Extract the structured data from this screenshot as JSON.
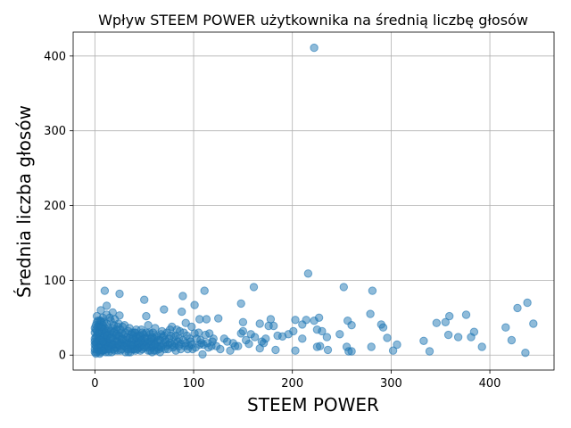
{
  "chart_data": {
    "type": "scatter",
    "title": "Wpływ STEEM POWER użytkownika na średnią liczbę głosów",
    "xlabel": "STEEM POWER",
    "ylabel": "Średnia liczba głosów",
    "xlim": [
      -22,
      465
    ],
    "ylim": [
      -20,
      432
    ],
    "xticks": [
      0,
      100,
      200,
      300,
      400
    ],
    "yticks": [
      0,
      100,
      200,
      300,
      400
    ],
    "grid": true,
    "color": "#1f77b4",
    "points": [
      [
        222,
        411
      ],
      [
        216,
        109
      ],
      [
        252,
        91
      ],
      [
        161,
        91
      ],
      [
        10,
        86
      ],
      [
        111,
        86
      ],
      [
        281,
        86
      ],
      [
        89,
        79
      ],
      [
        50,
        74
      ],
      [
        25,
        82
      ],
      [
        438,
        70
      ],
      [
        148,
        69
      ],
      [
        101,
        67
      ],
      [
        428,
        63
      ],
      [
        70,
        61
      ],
      [
        6,
        60
      ],
      [
        12,
        66
      ],
      [
        18,
        57
      ],
      [
        88,
        58
      ],
      [
        25,
        53
      ],
      [
        8,
        50
      ],
      [
        2,
        52
      ],
      [
        52,
        52
      ],
      [
        113,
        48
      ],
      [
        125,
        49
      ],
      [
        106,
        48
      ],
      [
        178,
        48
      ],
      [
        214,
        47
      ],
      [
        222,
        46
      ],
      [
        203,
        47
      ],
      [
        227,
        50
      ],
      [
        256,
        46
      ],
      [
        279,
        55
      ],
      [
        359,
        52
      ],
      [
        376,
        54
      ],
      [
        346,
        43
      ],
      [
        355,
        44
      ],
      [
        444,
        42
      ],
      [
        416,
        37
      ],
      [
        150,
        44
      ],
      [
        167,
        42
      ],
      [
        176,
        39
      ],
      [
        181,
        39
      ],
      [
        210,
        41
      ],
      [
        201,
        32
      ],
      [
        225,
        34
      ],
      [
        230,
        32
      ],
      [
        210,
        22
      ],
      [
        235,
        24
      ],
      [
        248,
        28
      ],
      [
        260,
        40
      ],
      [
        290,
        41
      ],
      [
        292,
        37
      ],
      [
        296,
        23
      ],
      [
        306,
        14
      ],
      [
        333,
        19
      ],
      [
        358,
        27
      ],
      [
        368,
        24
      ],
      [
        381,
        24
      ],
      [
        384,
        31
      ],
      [
        392,
        11
      ],
      [
        422,
        20
      ],
      [
        436,
        3
      ],
      [
        339,
        5
      ],
      [
        302,
        6
      ],
      [
        280,
        11
      ],
      [
        260,
        5
      ],
      [
        257,
        5
      ],
      [
        255,
        11
      ],
      [
        236,
        7
      ],
      [
        228,
        12
      ],
      [
        225,
        11
      ],
      [
        203,
        6
      ],
      [
        183,
        7
      ],
      [
        171,
        16
      ],
      [
        167,
        9
      ],
      [
        156,
        15
      ],
      [
        148,
        29
      ],
      [
        150,
        32
      ],
      [
        142,
        12
      ],
      [
        137,
        6
      ],
      [
        131,
        22
      ],
      [
        120,
        22
      ],
      [
        118,
        12
      ],
      [
        116,
        29
      ],
      [
        112,
        27
      ],
      [
        109,
        1
      ],
      [
        106,
        14
      ],
      [
        101,
        29
      ],
      [
        98,
        38
      ],
      [
        96,
        22
      ],
      [
        94,
        8
      ],
      [
        92,
        43
      ],
      [
        90,
        30
      ],
      [
        87,
        15
      ],
      [
        85,
        22
      ],
      [
        82,
        6
      ],
      [
        80,
        24
      ],
      [
        76,
        34
      ],
      [
        72,
        12
      ],
      [
        70,
        26
      ],
      [
        66,
        12
      ],
      [
        62,
        6
      ],
      [
        60,
        22
      ],
      [
        58,
        4
      ],
      [
        55,
        18
      ],
      [
        48,
        30
      ],
      [
        45,
        10
      ],
      [
        42,
        34
      ],
      [
        38,
        12
      ],
      [
        36,
        4
      ],
      [
        33,
        24
      ],
      [
        28,
        38
      ],
      [
        26,
        16
      ],
      [
        24,
        42
      ],
      [
        21,
        26
      ],
      [
        19,
        8
      ],
      [
        16,
        46
      ],
      [
        14,
        20
      ],
      [
        13,
        32
      ],
      [
        11,
        4
      ],
      [
        10,
        28
      ],
      [
        9,
        16
      ],
      [
        8,
        40
      ],
      [
        7,
        10
      ],
      [
        6,
        24
      ],
      [
        5,
        34
      ],
      [
        4,
        6
      ],
      [
        3,
        18
      ],
      [
        2,
        44
      ],
      [
        1,
        12
      ],
      [
        1,
        2
      ],
      [
        0,
        30
      ],
      [
        0,
        8
      ],
      [
        0,
        22
      ],
      [
        2,
        26
      ],
      [
        4,
        14
      ],
      [
        5,
        2
      ],
      [
        7,
        32
      ],
      [
        9,
        6
      ],
      [
        11,
        18
      ],
      [
        12,
        10
      ],
      [
        15,
        28
      ],
      [
        17,
        4
      ],
      [
        18,
        36
      ],
      [
        20,
        14
      ],
      [
        22,
        22
      ],
      [
        23,
        6
      ],
      [
        27,
        30
      ],
      [
        29,
        12
      ],
      [
        30,
        20
      ],
      [
        31,
        4
      ],
      [
        34,
        16
      ],
      [
        37,
        28
      ],
      [
        39,
        8
      ],
      [
        40,
        20
      ],
      [
        43,
        14
      ],
      [
        44,
        26
      ],
      [
        46,
        6
      ],
      [
        49,
        16
      ],
      [
        51,
        24
      ],
      [
        53,
        10
      ],
      [
        56,
        28
      ],
      [
        57,
        14
      ],
      [
        59,
        30
      ],
      [
        63,
        18
      ],
      [
        65,
        8
      ],
      [
        68,
        32
      ],
      [
        71,
        20
      ],
      [
        74,
        14
      ],
      [
        77,
        26
      ],
      [
        79,
        10
      ],
      [
        84,
        18
      ],
      [
        86,
        32
      ],
      [
        91,
        12
      ],
      [
        93,
        26
      ],
      [
        97,
        18
      ],
      [
        99,
        8
      ],
      [
        103,
        22
      ],
      [
        105,
        30
      ],
      [
        108,
        16
      ],
      [
        115,
        10
      ],
      [
        119,
        18
      ],
      [
        123,
        12
      ],
      [
        127,
        8
      ],
      [
        134,
        18
      ],
      [
        140,
        16
      ],
      [
        145,
        12
      ],
      [
        153,
        20
      ],
      [
        158,
        28
      ],
      [
        162,
        24
      ],
      [
        169,
        18
      ],
      [
        173,
        22
      ],
      [
        185,
        26
      ],
      [
        190,
        25
      ],
      [
        196,
        28
      ],
      [
        15,
        50
      ],
      [
        3,
        38
      ],
      [
        6,
        46
      ],
      [
        20,
        48
      ],
      [
        12,
        54
      ],
      [
        8,
        36
      ],
      [
        22,
        34
      ],
      [
        30,
        40
      ],
      [
        35,
        36
      ],
      [
        41,
        30
      ],
      [
        47,
        34
      ],
      [
        54,
        40
      ],
      [
        61,
        36
      ],
      [
        67,
        28
      ],
      [
        73,
        30
      ],
      [
        78,
        38
      ],
      [
        83,
        34
      ],
      [
        1,
        16
      ],
      [
        2,
        8
      ],
      [
        3,
        28
      ],
      [
        4,
        40
      ],
      [
        5,
        12
      ],
      [
        6,
        4
      ],
      [
        7,
        20
      ],
      [
        8,
        26
      ],
      [
        9,
        34
      ],
      [
        10,
        12
      ],
      [
        11,
        22
      ],
      [
        13,
        8
      ],
      [
        14,
        36
      ],
      [
        16,
        12
      ],
      [
        17,
        24
      ],
      [
        19,
        30
      ],
      [
        21,
        10
      ],
      [
        23,
        18
      ],
      [
        25,
        24
      ],
      [
        26,
        6
      ],
      [
        28,
        14
      ],
      [
        32,
        10
      ],
      [
        34,
        32
      ],
      [
        37,
        18
      ],
      [
        39,
        26
      ],
      [
        41,
        12
      ],
      [
        43,
        22
      ],
      [
        46,
        18
      ],
      [
        48,
        8
      ],
      [
        50,
        22
      ],
      [
        53,
        16
      ],
      [
        55,
        30
      ],
      [
        58,
        10
      ],
      [
        60,
        16
      ],
      [
        62,
        24
      ],
      [
        64,
        20
      ],
      [
        66,
        4
      ],
      [
        69,
        14
      ],
      [
        71,
        8
      ],
      [
        75,
        22
      ],
      [
        81,
        16
      ],
      [
        0,
        4
      ],
      [
        0,
        14
      ],
      [
        0,
        36
      ],
      [
        1,
        24
      ],
      [
        1,
        40
      ],
      [
        2,
        18
      ],
      [
        2,
        32
      ],
      [
        3,
        10
      ],
      [
        4,
        22
      ],
      [
        5,
        46
      ],
      [
        6,
        14
      ],
      [
        7,
        44
      ],
      [
        8,
        6
      ],
      [
        9,
        24
      ],
      [
        10,
        36
      ],
      [
        11,
        14
      ],
      [
        12,
        26
      ],
      [
        13,
        18
      ],
      [
        14,
        4
      ],
      [
        15,
        16
      ],
      [
        16,
        32
      ],
      [
        17,
        14
      ],
      [
        18,
        22
      ],
      [
        19,
        14
      ],
      [
        20,
        32
      ],
      [
        21,
        18
      ],
      [
        22,
        10
      ],
      [
        24,
        26
      ],
      [
        25,
        12
      ],
      [
        27,
        20
      ],
      [
        29,
        28
      ],
      [
        31,
        16
      ],
      [
        33,
        8
      ],
      [
        35,
        22
      ],
      [
        38,
        30
      ],
      [
        40,
        8
      ],
      [
        42,
        18
      ],
      [
        44,
        10
      ],
      [
        45,
        24
      ],
      [
        47,
        12
      ],
      [
        49,
        28
      ],
      [
        52,
        12
      ],
      [
        54,
        6
      ],
      [
        57,
        22
      ],
      [
        59,
        12
      ],
      [
        63,
        10
      ],
      [
        0,
        18
      ],
      [
        1,
        34
      ],
      [
        2,
        4
      ],
      [
        3,
        46
      ],
      [
        4,
        30
      ],
      [
        5,
        20
      ],
      [
        6,
        38
      ],
      [
        7,
        6
      ],
      [
        8,
        18
      ],
      [
        9,
        44
      ],
      [
        10,
        8
      ],
      [
        11,
        30
      ],
      [
        12,
        42
      ],
      [
        13,
        26
      ],
      [
        14,
        12
      ],
      [
        15,
        8
      ],
      [
        16,
        22
      ],
      [
        18,
        14
      ],
      [
        19,
        40
      ],
      [
        20,
        6
      ],
      [
        22,
        28
      ],
      [
        23,
        38
      ],
      [
        24,
        14
      ],
      [
        26,
        34
      ],
      [
        27,
        8
      ],
      [
        28,
        22
      ],
      [
        30,
        12
      ],
      [
        31,
        30
      ],
      [
        32,
        20
      ],
      [
        33,
        14
      ],
      [
        34,
        4
      ],
      [
        36,
        14
      ],
      [
        37,
        8
      ],
      [
        38,
        22
      ],
      [
        39,
        14
      ],
      [
        40,
        30
      ],
      [
        41,
        6
      ],
      [
        42,
        24
      ],
      [
        43,
        8
      ],
      [
        44,
        16
      ],
      [
        46,
        26
      ],
      [
        47,
        20
      ],
      [
        48,
        14
      ],
      [
        50,
        10
      ],
      [
        51,
        18
      ],
      [
        52,
        30
      ],
      [
        53,
        22
      ],
      [
        55,
        12
      ],
      [
        56,
        6
      ],
      [
        57,
        18
      ],
      [
        58,
        24
      ],
      [
        60,
        6
      ],
      [
        61,
        14
      ],
      [
        63,
        26
      ],
      [
        64,
        12
      ],
      [
        66,
        20
      ],
      [
        67,
        10
      ],
      [
        69,
        24
      ],
      [
        72,
        18
      ],
      [
        74,
        8
      ],
      [
        76,
        16
      ],
      [
        78,
        14
      ],
      [
        80,
        12
      ],
      [
        82,
        26
      ],
      [
        85,
        12
      ],
      [
        87,
        8
      ],
      [
        89,
        20
      ],
      [
        92,
        16
      ],
      [
        95,
        12
      ],
      [
        98,
        14
      ],
      [
        102,
        10
      ],
      [
        107,
        20
      ],
      [
        110,
        14
      ],
      [
        114,
        16
      ]
    ]
  }
}
